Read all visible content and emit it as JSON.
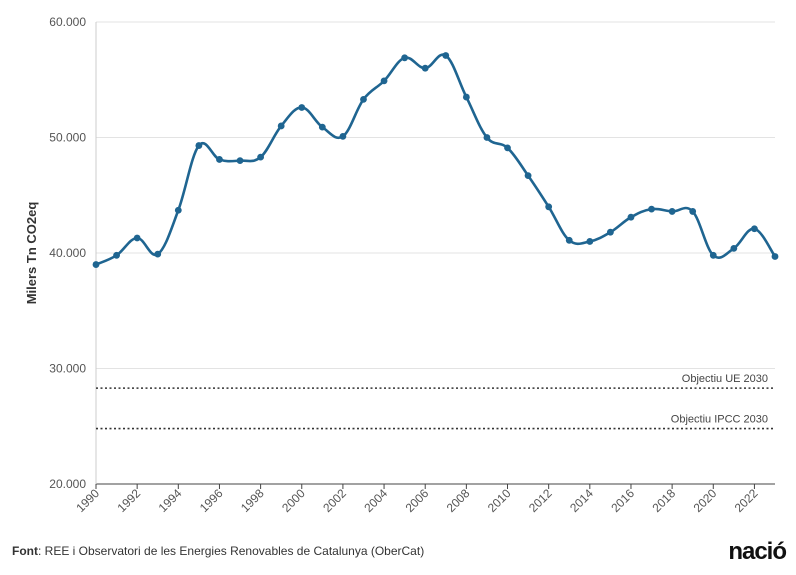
{
  "chart_data": {
    "type": "line",
    "ylabel": "Milers Tn CO2eq",
    "ylim": [
      20000,
      60000
    ],
    "yticks": [
      20000,
      30000,
      40000,
      50000,
      60000
    ],
    "ytick_labels": [
      "20.000",
      "30.000",
      "40.000",
      "50.000",
      "60.000"
    ],
    "xlim": [
      1990,
      2023
    ],
    "xticks": [
      1990,
      1992,
      1994,
      1996,
      1998,
      2000,
      2002,
      2004,
      2006,
      2008,
      2010,
      2012,
      2014,
      2016,
      2018,
      2020,
      2022
    ],
    "xtick_labels": [
      "1990",
      "1992",
      "1994",
      "1996",
      "1998",
      "2000",
      "2002",
      "2004",
      "2006",
      "2008",
      "2010",
      "2012",
      "2014",
      "2016",
      "2018",
      "2020",
      "2022"
    ],
    "grid": "horizontal",
    "series": [
      {
        "color": "#1f6591",
        "x": [
          1990,
          1991,
          1992,
          1993,
          1994,
          1995,
          1996,
          1997,
          1998,
          1999,
          2000,
          2001,
          2002,
          2003,
          2004,
          2005,
          2006,
          2007,
          2008,
          2009,
          2010,
          2011,
          2012,
          2013,
          2014,
          2015,
          2016,
          2017,
          2018,
          2019,
          2020,
          2021,
          2022,
          2023
        ],
        "values": [
          39000,
          39800,
          41300,
          39900,
          43700,
          49300,
          48100,
          48000,
          48300,
          51000,
          52600,
          50900,
          50100,
          53300,
          54900,
          56900,
          56000,
          57100,
          53500,
          50000,
          49100,
          46700,
          44000,
          41100,
          41000,
          41800,
          43100,
          43800,
          43600,
          43600,
          39800,
          40400,
          42100,
          39700
        ]
      }
    ],
    "reference_lines": [
      {
        "label": "Objectiu UE 2030",
        "value": 28300
      },
      {
        "label": "Objectiu IPCC 2030",
        "value": 24800
      }
    ]
  },
  "footer": {
    "source_label": "Font",
    "source_text": ": REE i Observatori de les Energies Renovables de Catalunya (OberCat)"
  },
  "brand": {
    "logo_text": "nació"
  }
}
